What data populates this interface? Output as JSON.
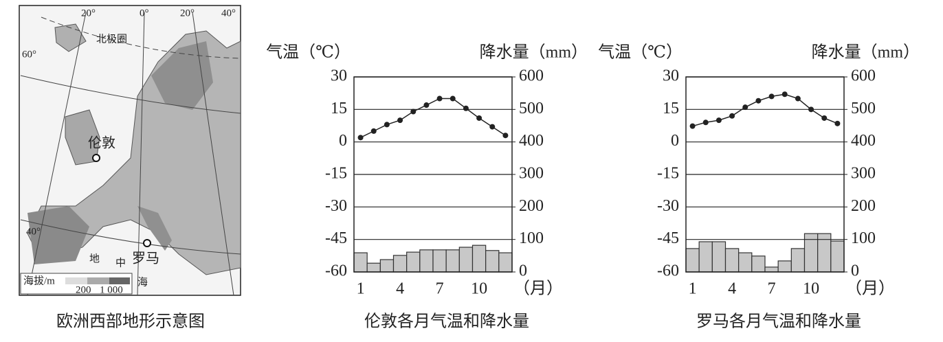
{
  "map": {
    "caption": "欧洲西部地形示意图",
    "arctic": "北极圈",
    "london": "伦敦",
    "rome": "罗马",
    "sea": [
      "地",
      "中",
      "海"
    ],
    "legend_title": "海拔/m",
    "legend_ticks": [
      "200",
      "1 000"
    ],
    "meridians": [
      "20°",
      "0°",
      "20°",
      "40°"
    ],
    "parallels": [
      "60°",
      "40°"
    ]
  },
  "chart_data": [
    {
      "type": "combo",
      "title": "伦敦各月气温和降水量",
      "ylabel": "气温（℃）",
      "y2label": "降水量（mm）",
      "xunit": "（月）",
      "categories": [
        1,
        null,
        null,
        4,
        null,
        null,
        7,
        null,
        null,
        10,
        null,
        null
      ],
      "series": [
        {
          "kind": "line",
          "color": "#222222",
          "values": [
            2,
            5,
            8,
            10,
            14,
            17,
            20,
            20,
            15.5,
            11,
            7,
            3
          ]
        },
        {
          "kind": "bar",
          "axis": "y2",
          "color": "#c8c8c8",
          "values": [
            59,
            27,
            38,
            51,
            61,
            68,
            68,
            68,
            76,
            82,
            66,
            59
          ]
        }
      ],
      "ylim": [
        -60,
        30
      ],
      "yticks": [
        -60,
        -45,
        -30,
        -15,
        0,
        15,
        30
      ],
      "y2lim": [
        0,
        600
      ],
      "y2ticks": [
        0,
        100,
        200,
        300,
        400,
        500,
        600
      ],
      "grid": true
    },
    {
      "type": "combo",
      "title": "罗马各月气温和降水量",
      "ylabel": "气温（℃）",
      "y2label": "降水量（mm）",
      "xunit": "（月）",
      "categories": [
        1,
        null,
        null,
        4,
        null,
        null,
        7,
        null,
        null,
        10,
        null,
        null
      ],
      "series": [
        {
          "kind": "line",
          "color": "#222222",
          "values": [
            7.3,
            9,
            10,
            12,
            16,
            19,
            21,
            22,
            20,
            15,
            11,
            8.5
          ]
        },
        {
          "kind": "bar",
          "axis": "y2",
          "color": "#c8c8c8",
          "values": [
            72,
            93,
            93,
            72,
            59,
            49,
            15,
            34,
            72,
            118,
            118,
            95
          ]
        }
      ],
      "ylim": [
        -60,
        30
      ],
      "yticks": [
        -60,
        -45,
        -30,
        -15,
        0,
        15,
        30
      ],
      "y2lim": [
        0,
        600
      ],
      "y2ticks": [
        0,
        100,
        200,
        300,
        400,
        500,
        600
      ],
      "grid": true
    }
  ]
}
